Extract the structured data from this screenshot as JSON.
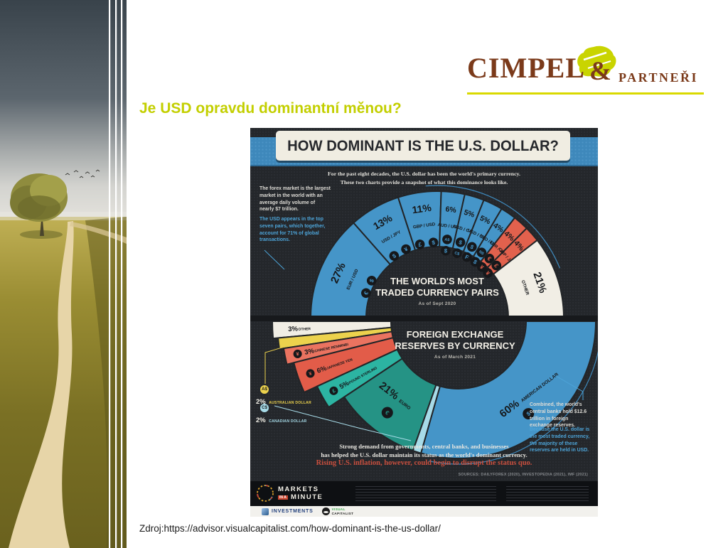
{
  "slide": {
    "heading": "Je USD opravdu dominantní měnou?",
    "source_line": "Zdroj:https://advisor.visualcapitalist.com/how-dominant-is-the-us-dollar/",
    "heading_color": "#c3cf00"
  },
  "logo": {
    "name_main": "CIMPEL",
    "ampersand": "&",
    "name_secondary": "PARTNEŘI",
    "brown": "#7b3a1a",
    "green": "#c9d400"
  },
  "infographic": {
    "title": "HOW DOMINANT IS THE U.S. DOLLAR?",
    "subtitle_line1": "For the past eight decades, the U.S. dollar has been the world's primary currency.",
    "subtitle_line2": "These two charts provide a snapshot of what this dominance looks like.",
    "left_note_white": "The forex market is the largest market in the world with an average daily volume of nearly $7 trillion.",
    "left_note_blue": "The USD appears in the top seven pairs, which together, account for 71% of global transactions.",
    "right_note_white": "Combined, the world's central banks hold $12.6 trillion in foreign exchange reserves.",
    "right_note_blue": "Because the U.S. dollar is the most traded currency, the majority of these reserves are held in USD.",
    "closing_line1": "Strong demand from governments, central banks, and businesses",
    "closing_line2": "has helped the U.S. dollar maintain its status as the world's dominant currency.",
    "closing_warning": "Rising U.S. inflation, however, could begin to disrupt the status quo.",
    "sources": "SOURCES: DAILYFOREX (2020), INVESTOPEDIA (2021), IMF (2021)",
    "footer_brand": {
      "l1": "MARKETS",
      "l2": "IN A",
      "l3": "MINUTE"
    },
    "partner_logos": {
      "investments": "INVESTMENTS",
      "vc1": "VISUAL",
      "vc2": "CAPITALIST"
    }
  },
  "chart_data": [
    {
      "type": "half-donut-fan",
      "orientation": "up",
      "title_line1": "THE WORLD'S MOST",
      "title_line2": "TRADED CURRENCY PAIRS",
      "as_of": "As of Sept 2020",
      "unit": "percent of global trades",
      "segments": [
        {
          "pair": "EUR / USD",
          "pct_label": "27%",
          "value": 27,
          "color": "#4595c8",
          "icons": [
            "€",
            "$"
          ]
        },
        {
          "pair": "USD / JPY",
          "pct_label": "13%",
          "value": 13,
          "color": "#4595c8",
          "icons": [
            "$",
            "¥"
          ]
        },
        {
          "pair": "GBP / USD",
          "pct_label": "11%",
          "value": 11,
          "color": "#4595c8",
          "icons": [
            "£",
            "$"
          ]
        },
        {
          "pair": "AUD / USD",
          "pct_label": "6%",
          "value": 6,
          "color": "#4595c8",
          "icons": [
            "A$",
            "$"
          ]
        },
        {
          "pair": "USD / CAD",
          "pct_label": "5%",
          "value": 5,
          "color": "#4595c8",
          "icons": [
            "$",
            "C$"
          ]
        },
        {
          "pair": "USD / CHF",
          "pct_label": "5%",
          "value": 5,
          "color": "#4595c8",
          "icons": [
            "$",
            "F"
          ]
        },
        {
          "pair": "NZD / USD",
          "pct_label": "4%",
          "value": 4,
          "color": "#4595c8",
          "icons": [
            "N$",
            "$"
          ]
        },
        {
          "pair": "EUR / JPY",
          "pct_label": "4%",
          "value": 4,
          "color": "#e2614d",
          "icons": [
            "€",
            "¥"
          ]
        },
        {
          "pair": "GBP / JPY",
          "pct_label": "4%",
          "value": 4,
          "color": "#e2614d",
          "icons": [
            "£",
            "¥"
          ]
        },
        {
          "pair": "OTHER",
          "pct_label": "21%",
          "value": 21,
          "color": "#f1eee5",
          "icons": []
        }
      ]
    },
    {
      "type": "half-donut-fan",
      "orientation": "down",
      "title_line1": "FOREIGN EXCHANGE",
      "title_line2": "RESERVES BY CURRENCY",
      "as_of": "As of March 2021",
      "unit": "percent of reserves",
      "segments": [
        {
          "name": "OTHER",
          "pct_label": "3%",
          "value": 3,
          "color": "#f1eee5",
          "label_style": "radial",
          "extend": 262
        },
        {
          "name": "AUSTRALIAN DOLLAR",
          "pct_label": "2%",
          "value": 2,
          "color": "#ecd24d",
          "label_style": "none",
          "extend": 255
        },
        {
          "name": "CHINESE RENMINBI",
          "pct_label": "3%",
          "value": 3,
          "color": "#ea7360",
          "label_style": "radial",
          "icon": "¥",
          "extend": 249
        },
        {
          "name": "JAPANESE YEN",
          "pct_label": "6%",
          "value": 6,
          "color": "#e25c49",
          "label_style": "radial",
          "icon": "¥",
          "extend": 239
        },
        {
          "name": "POUND STERLING",
          "pct_label": "5%",
          "value": 5,
          "color": "#2cb4a2",
          "label_style": "radial",
          "icon": "£",
          "extend": 219
        },
        {
          "name": "EURO",
          "pct_label": "21%",
          "value": 21,
          "color": "#259385",
          "label_style": "tangent",
          "icon": "€"
        },
        {
          "name": "CANADIAN DOLLAR",
          "pct_label": "2%",
          "value": 2,
          "color": "#a7dbe8",
          "label_style": "none"
        },
        {
          "name": "AMERICAN DOLLAR",
          "pct_label": "60%",
          "value": 60,
          "color": "#4595c8",
          "label_style": "tangent",
          "icon": "$"
        }
      ],
      "callouts": [
        {
          "symbol": "A$",
          "pct": "2%",
          "name": "AUSTRALIAN DOLLAR",
          "color": "#ecd24d"
        },
        {
          "symbol": "C$",
          "pct": "2%",
          "name": "CANADIAN DOLLAR",
          "color": "#a7dbe8"
        }
      ]
    }
  ]
}
